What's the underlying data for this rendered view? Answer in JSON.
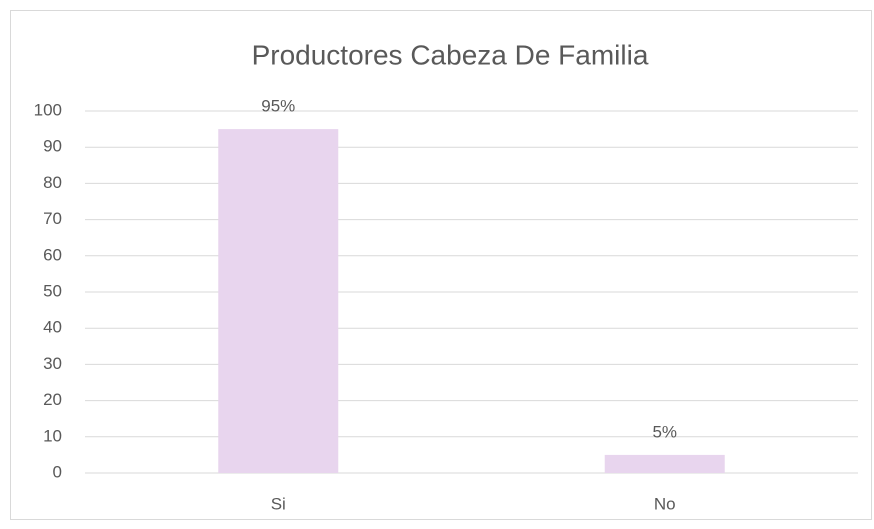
{
  "chart_data": {
    "type": "bar",
    "title": "Productores Cabeza De Familia",
    "categories": [
      "Si",
      "No"
    ],
    "values": [
      95,
      5
    ],
    "value_labels": [
      "95%",
      "5%"
    ],
    "color": "#e8d5ee",
    "ylim": [
      0,
      100
    ],
    "yticks": [
      0,
      10,
      20,
      30,
      40,
      50,
      60,
      70,
      80,
      90,
      100
    ],
    "grid": true
  }
}
